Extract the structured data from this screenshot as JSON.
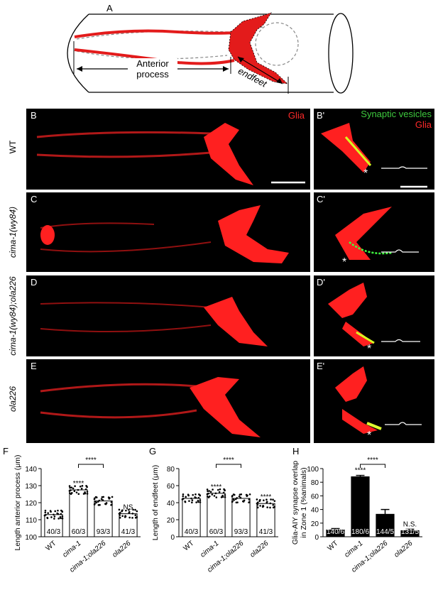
{
  "panel_A": {
    "letter": "A",
    "anterior_process": "Anterior\nprocess",
    "endfeet": "endfeet"
  },
  "image_rows": [
    {
      "genotype": "WT",
      "left_letter": "B",
      "right_letter": "B'",
      "italic": false
    },
    {
      "genotype": "cima-1(wy84)",
      "left_letter": "C",
      "right_letter": "C'",
      "italic": true
    },
    {
      "genotype": "cima-1(wy84);ola226",
      "left_letter": "D",
      "right_letter": "D'",
      "italic": true
    },
    {
      "genotype": "ola226",
      "left_letter": "E",
      "right_letter": "E'",
      "italic": true
    }
  ],
  "labels": {
    "glia": "Glia",
    "synaptic_vesicles": "Synaptic vesicles"
  },
  "colors": {
    "glia_red": "#ff2a2a",
    "vesicle_green": "#3ec93e",
    "bar_black": "#000000"
  },
  "chart_data": [
    {
      "panel": "F",
      "type": "bar",
      "ylabel": "Length anterior process (μm)",
      "ylim": [
        100,
        140
      ],
      "yticks": [
        100,
        110,
        120,
        130,
        140
      ],
      "categories": [
        "WT",
        "cima-1",
        "cima-1;ola226",
        "ola226"
      ],
      "values": [
        113,
        127.5,
        121,
        113.5
      ],
      "n_labels": [
        "40/3",
        "60/3",
        "93/3",
        "41/3"
      ],
      "significance": [
        "",
        "****",
        "",
        "NS"
      ],
      "bracket": {
        "from": "cima-1",
        "to": "cima-1;ola226",
        "label": "****"
      }
    },
    {
      "panel": "G",
      "type": "bar",
      "ylabel": "Length of endfeet (μm)",
      "ylim": [
        0,
        80
      ],
      "yticks": [
        0,
        20,
        40,
        60,
        80
      ],
      "categories": [
        "WT",
        "cima-1",
        "cima-1;ola226",
        "ola226"
      ],
      "values": [
        45,
        51,
        45,
        39
      ],
      "n_labels": [
        "40/3",
        "60/3",
        "93/3",
        "41/3"
      ],
      "significance": [
        "",
        "****",
        "",
        "****"
      ],
      "bracket": {
        "from": "cima-1",
        "to": "cima-1;ola226",
        "label": "****"
      }
    },
    {
      "panel": "H",
      "type": "bar",
      "ylabel": "Glia-AIY synapse  overlap\nin Zone 1 (%animals)",
      "ylim": [
        0,
        100
      ],
      "yticks": [
        0,
        20,
        40,
        60,
        80,
        100
      ],
      "categories": [
        "WT",
        "cima-1",
        "cima-1;ola226",
        "ola226"
      ],
      "values": [
        10,
        88,
        33,
        9
      ],
      "errors": [
        2,
        2,
        7,
        2
      ],
      "n_labels": [
        "140/6",
        "180/6",
        "144/5",
        "131/5"
      ],
      "significance": [
        "",
        "****",
        "",
        "N.S."
      ],
      "bracket": {
        "from": "cima-1",
        "to": "cima-1;ola226",
        "label": "****"
      }
    }
  ]
}
